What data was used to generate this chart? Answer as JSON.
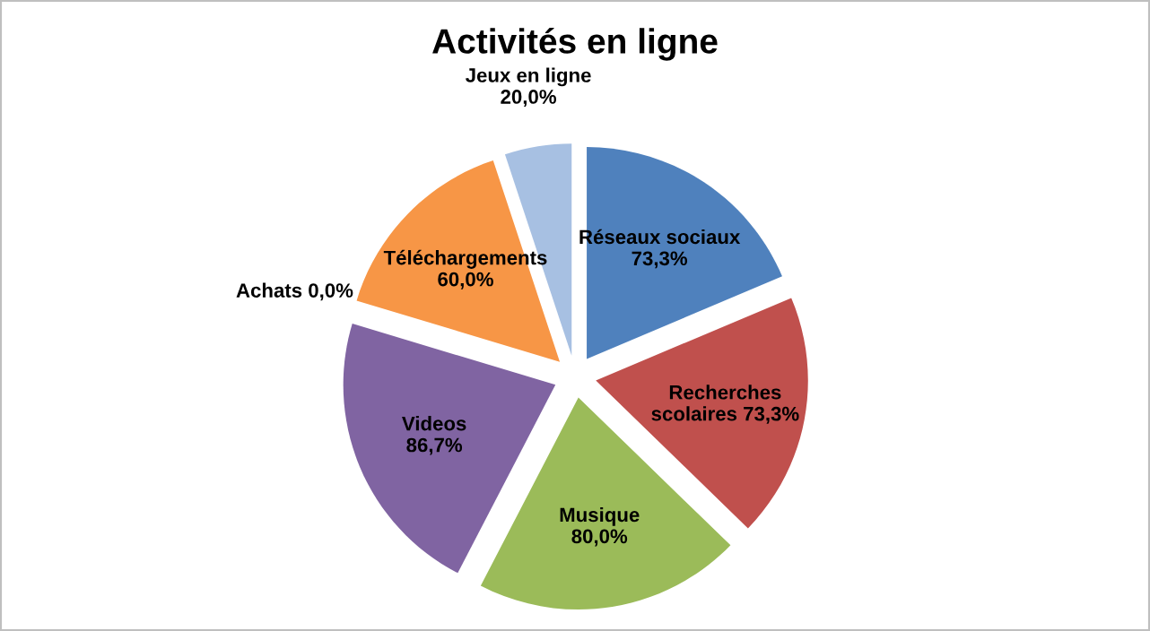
{
  "chart_data": {
    "type": "pie",
    "title": "Activités en ligne",
    "categories": [
      "Réseaux sociaux",
      "Recherches scolaires",
      "Musique",
      "Videos",
      "Achats",
      "Téléchargements",
      "Jeux en ligne"
    ],
    "values": [
      73.3,
      73.3,
      80.0,
      86.7,
      0.0,
      60.0,
      20.0
    ],
    "value_labels": [
      "73,3%",
      "73,3%",
      "80,0%",
      "86,7%",
      "0,0%",
      "60,0%",
      "20,0%"
    ],
    "colors": [
      "#4f81bd",
      "#c0504d",
      "#9bbb59",
      "#8064a2",
      "#4bacc6",
      "#f79646",
      "#a7c0e2"
    ],
    "legend": false
  }
}
